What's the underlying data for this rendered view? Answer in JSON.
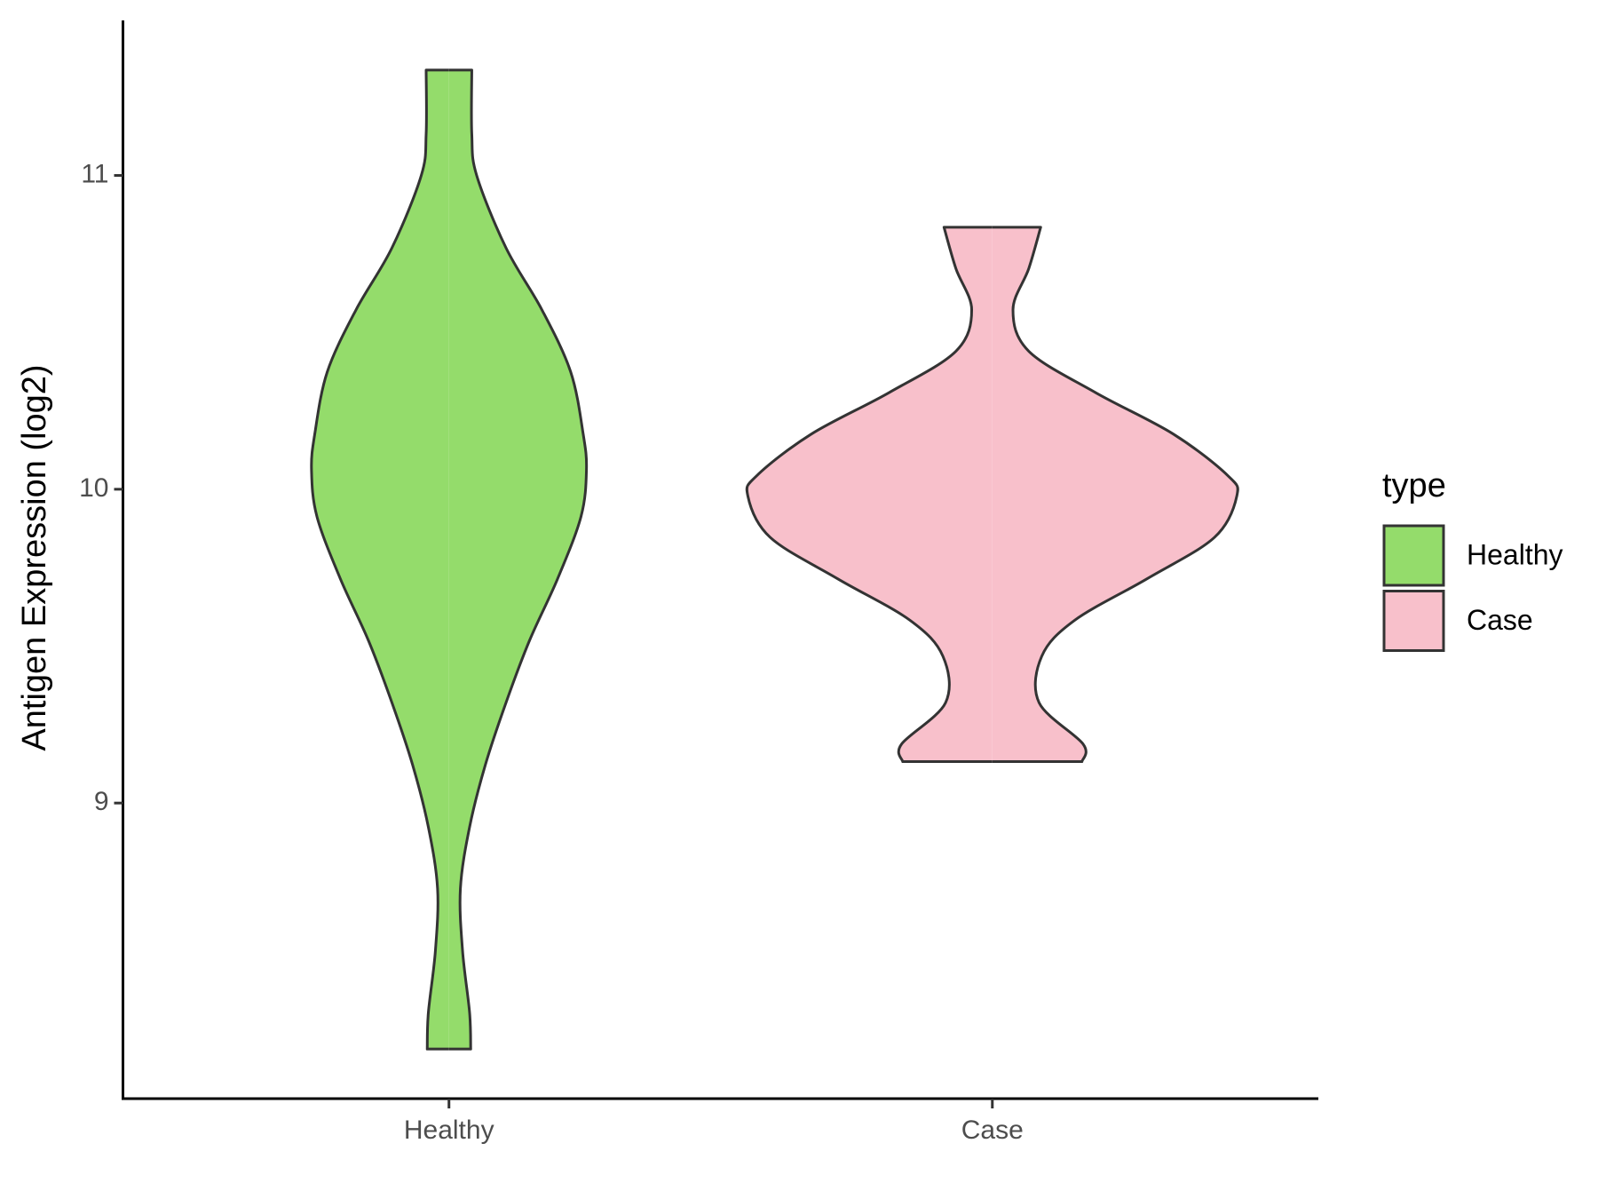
{
  "chart_data": {
    "type": "violin",
    "y_label": "Antigen Expression (log2)",
    "categories": [
      "Healthy",
      "Case"
    ],
    "ylim": [
      8.058,
      11.494
    ],
    "yticks": [
      9,
      10,
      11
    ],
    "legend_title": "type",
    "legend_position": "right",
    "series": [
      {
        "name": "Healthy",
        "color": "#94dc6b",
        "y": [
          11.336,
          11.132,
          11.0,
          10.769,
          10.572,
          10.374,
          10.176,
          10.061,
          9.913,
          9.715,
          9.517,
          9.32,
          9.122,
          8.924,
          8.727,
          8.529,
          8.331,
          8.216
        ],
        "half_width": [
          0.042,
          0.042,
          0.051,
          0.105,
          0.171,
          0.224,
          0.247,
          0.253,
          0.243,
          0.2,
          0.148,
          0.105,
          0.067,
          0.038,
          0.021,
          0.025,
          0.038,
          0.04
        ]
      },
      {
        "name": "Case",
        "color": "#f8c0cb",
        "y": [
          10.835,
          10.703,
          10.572,
          10.44,
          10.308,
          10.176,
          10.044,
          9.979,
          9.847,
          9.715,
          9.583,
          9.468,
          9.32,
          9.188,
          9.132
        ],
        "half_width": [
          0.089,
          0.067,
          0.038,
          0.067,
          0.19,
          0.333,
          0.433,
          0.45,
          0.409,
          0.285,
          0.152,
          0.091,
          0.086,
          0.167,
          0.165
        ]
      }
    ]
  }
}
